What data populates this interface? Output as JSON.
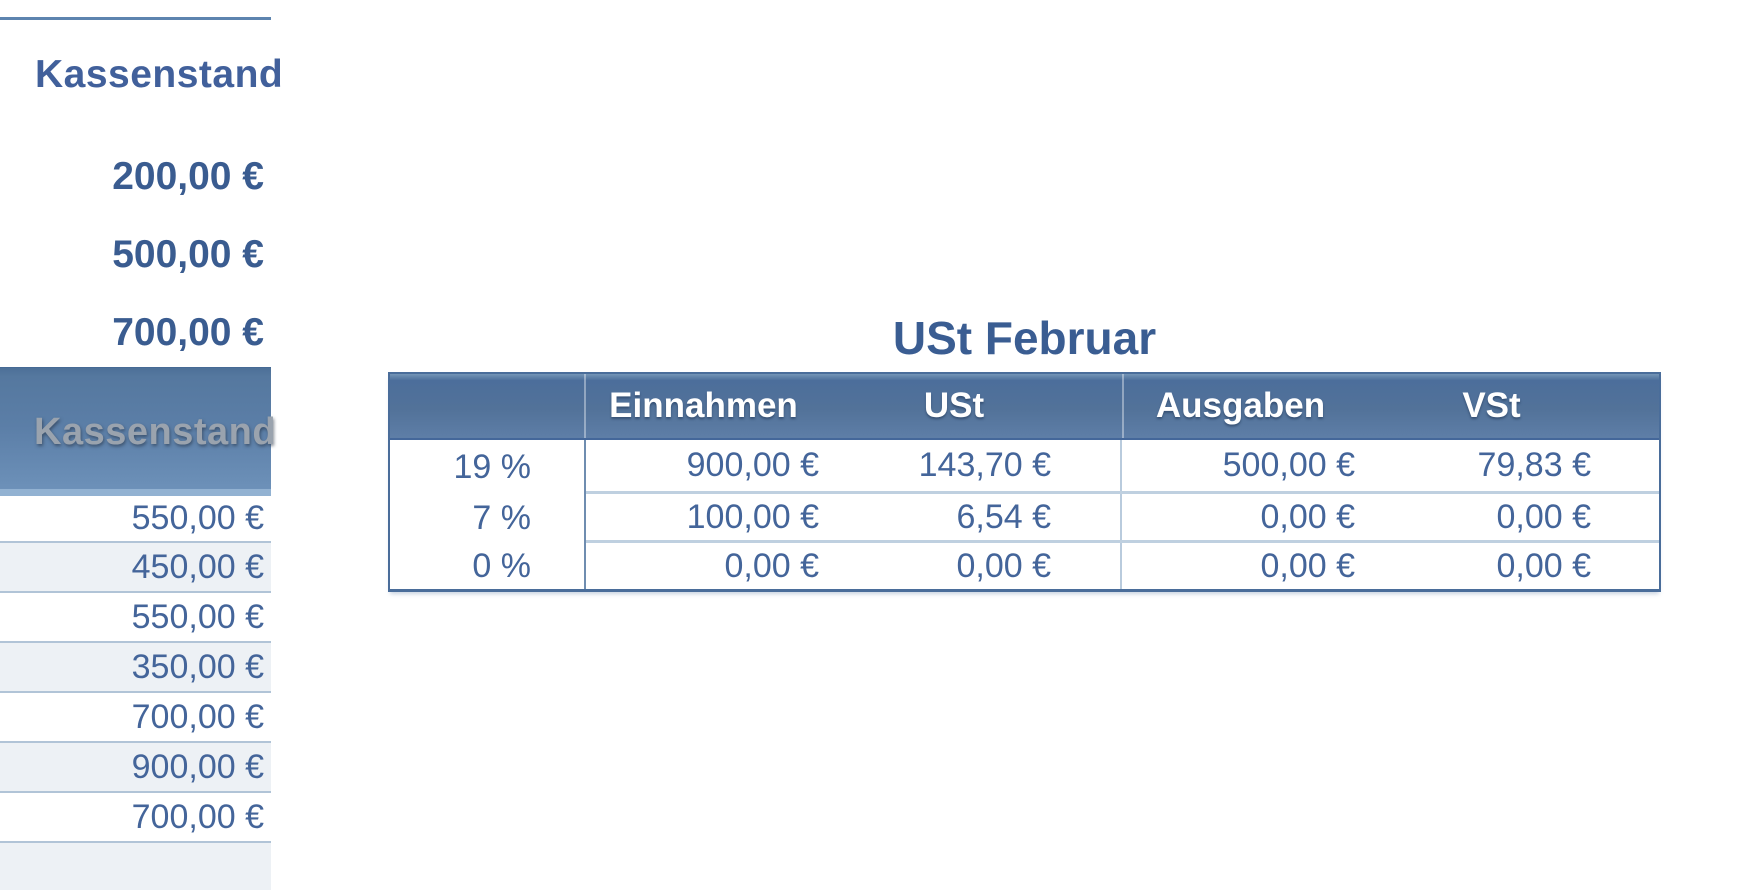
{
  "left_panel": {
    "title": "Kassenstand",
    "summary_values": [
      "200,00 €",
      "500,00 €",
      "700,00 €"
    ],
    "table_header": "Kassenstand",
    "rows": [
      "550,00 €",
      "450,00 €",
      "550,00 €",
      "350,00 €",
      "700,00 €",
      "900,00 €",
      "700,00 €",
      ""
    ]
  },
  "ust_table": {
    "title": "USt Februar",
    "columns": [
      "",
      "Einnahmen",
      "USt",
      "Ausgaben",
      "VSt"
    ],
    "rows": [
      {
        "label": "19 %",
        "values": [
          "900,00 €",
          "143,70 €",
          "500,00 €",
          "79,83 €"
        ]
      },
      {
        "label": "7 %",
        "values": [
          "100,00 €",
          "6,54 €",
          "0,00 €",
          "0,00 €"
        ]
      },
      {
        "label": "0 %",
        "values": [
          "0,00 €",
          "0,00 €",
          "0,00 €",
          "0,00 €"
        ]
      }
    ]
  },
  "colors": {
    "accent_blue": "#4a6d9a",
    "header_gradient_top": "#7495b6",
    "header_gradient_bottom": "#5e7ea7",
    "bar_light_band": "#92b2d2",
    "row_stripe": "#edf1f5",
    "row_separator": "#b1c4d7",
    "text_blue": "#44659a",
    "title_blue": "#3a5d92",
    "bar_label_gray": "#9aa3ae",
    "top_line_blue": "#5d84af"
  }
}
